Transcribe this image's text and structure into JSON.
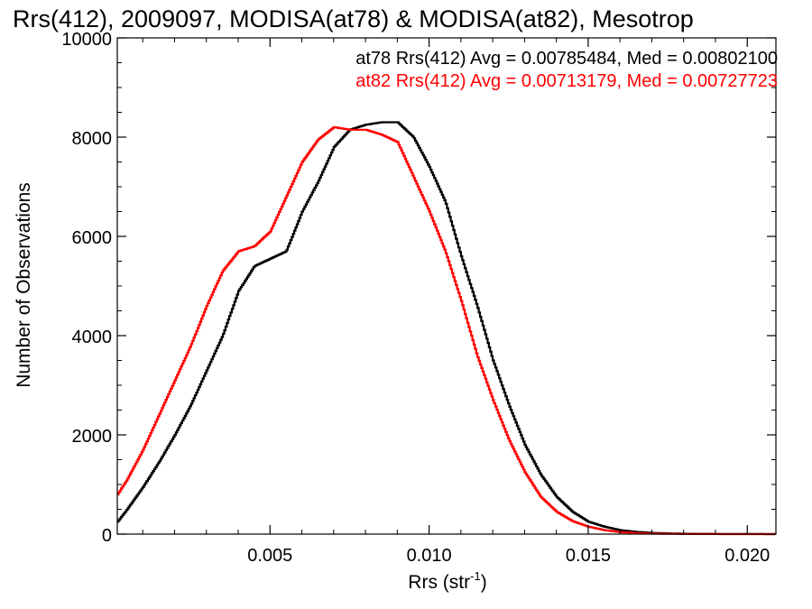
{
  "chart_data": {
    "type": "line",
    "title": "Rrs(412), 2009097, MODISA(at78) & MODISA(at82), Mesotrop",
    "xlabel": "Rrs (str",
    "xlabel_superscript": "-1",
    "xlabel_close": ")",
    "ylabel": "Number of Observations",
    "xlim": [
      0.0002,
      0.0209
    ],
    "ylim": [
      0,
      10000
    ],
    "x_ticks": [
      0.005,
      0.01,
      0.015,
      0.02
    ],
    "x_tick_labels": [
      "0.005",
      "0.010",
      "0.015",
      "0.020"
    ],
    "y_ticks": [
      0,
      2000,
      4000,
      6000,
      8000,
      10000
    ],
    "y_tick_labels": [
      "0",
      "2000",
      "4000",
      "6000",
      "8000",
      "10000"
    ],
    "grid": false,
    "legend_position": "top-right",
    "annotations": [
      {
        "text": "at78 Rrs(412) Avg = 0.00785484, Med = 0.00802100",
        "color": "#000000"
      },
      {
        "text": "at82 Rrs(412) Avg = 0.00713179, Med = 0.00727723",
        "color": "#ff0000"
      }
    ],
    "series": [
      {
        "name": "at78",
        "color": "#000000",
        "x": [
          0.0002,
          0.0005,
          0.001,
          0.0015,
          0.002,
          0.0025,
          0.003,
          0.0035,
          0.004,
          0.0045,
          0.005,
          0.0055,
          0.006,
          0.0065,
          0.007,
          0.0075,
          0.008,
          0.0085,
          0.009,
          0.0095,
          0.01,
          0.0105,
          0.011,
          0.0115,
          0.012,
          0.0125,
          0.013,
          0.0135,
          0.014,
          0.0145,
          0.015,
          0.0155,
          0.016,
          0.0165,
          0.017,
          0.0175,
          0.018,
          0.019,
          0.02,
          0.0209
        ],
        "y": [
          250,
          500,
          950,
          1450,
          2000,
          2600,
          3300,
          4000,
          4900,
          5400,
          5550,
          5700,
          6500,
          7100,
          7800,
          8150,
          8250,
          8300,
          8300,
          8000,
          7400,
          6700,
          5600,
          4600,
          3500,
          2600,
          1800,
          1200,
          750,
          450,
          250,
          150,
          80,
          45,
          25,
          15,
          8,
          4,
          2,
          0
        ]
      },
      {
        "name": "at82",
        "color": "#ff0000",
        "x": [
          0.0002,
          0.0005,
          0.001,
          0.0015,
          0.002,
          0.0025,
          0.003,
          0.0035,
          0.004,
          0.0045,
          0.005,
          0.0055,
          0.006,
          0.0065,
          0.007,
          0.0075,
          0.008,
          0.0085,
          0.009,
          0.0095,
          0.01,
          0.0105,
          0.011,
          0.0115,
          0.012,
          0.0125,
          0.013,
          0.0135,
          0.014,
          0.0145,
          0.015,
          0.0155,
          0.016,
          0.0165,
          0.017,
          0.0175,
          0.018,
          0.019,
          0.02,
          0.0209
        ],
        "y": [
          800,
          1100,
          1700,
          2400,
          3100,
          3800,
          4600,
          5300,
          5700,
          5800,
          6100,
          6800,
          7500,
          7950,
          8200,
          8150,
          8150,
          8050,
          7900,
          7200,
          6500,
          5700,
          4700,
          3600,
          2700,
          1900,
          1250,
          750,
          450,
          260,
          150,
          80,
          40,
          20,
          10,
          6,
          3,
          1,
          0,
          0
        ]
      }
    ]
  }
}
